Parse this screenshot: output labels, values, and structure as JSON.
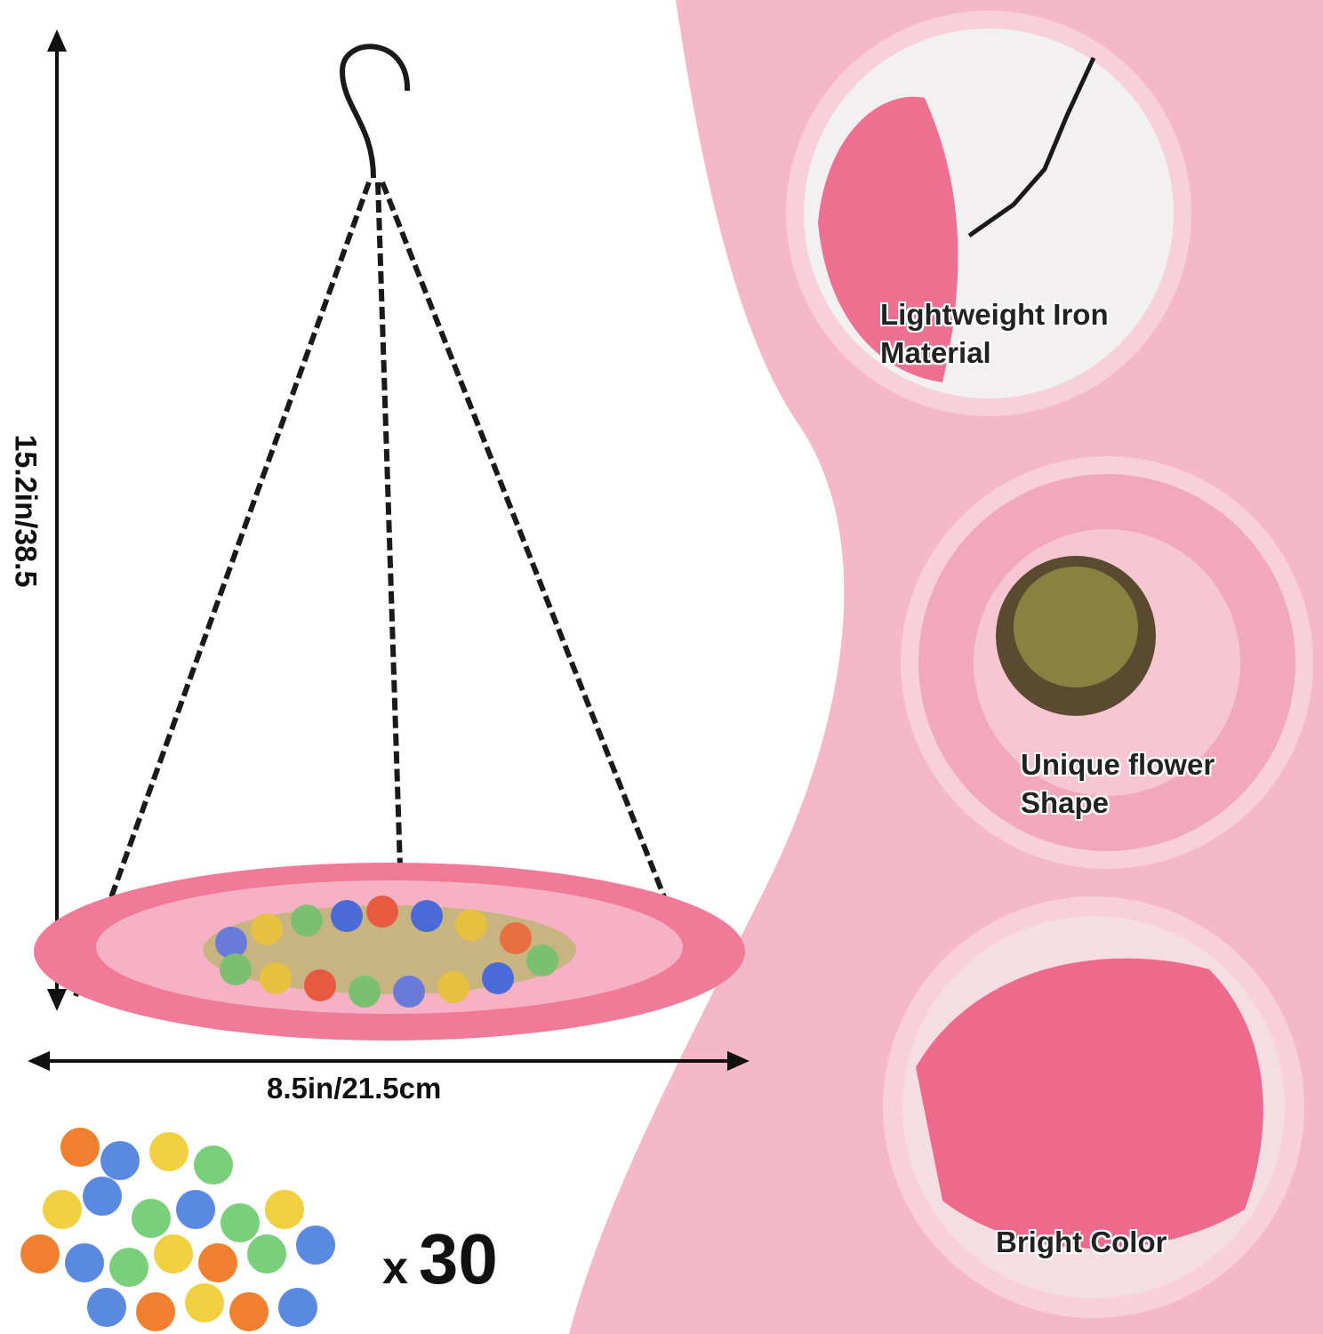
{
  "dimensions": {
    "height_label": "15.2in/38.5",
    "width_label": "8.5in/21.5cm"
  },
  "accessory": {
    "count_prefix": "x",
    "count": "30"
  },
  "features": [
    {
      "title": "Lightweight Iron",
      "title2": "Material"
    },
    {
      "title": "Unique flower",
      "title2": "Shape"
    },
    {
      "title": "Bright Color",
      "title2": ""
    }
  ],
  "colors": {
    "panel_pink": "#f4b8c8",
    "dish_pink": "#ee6a8c",
    "chain": "#1a1a1a"
  }
}
